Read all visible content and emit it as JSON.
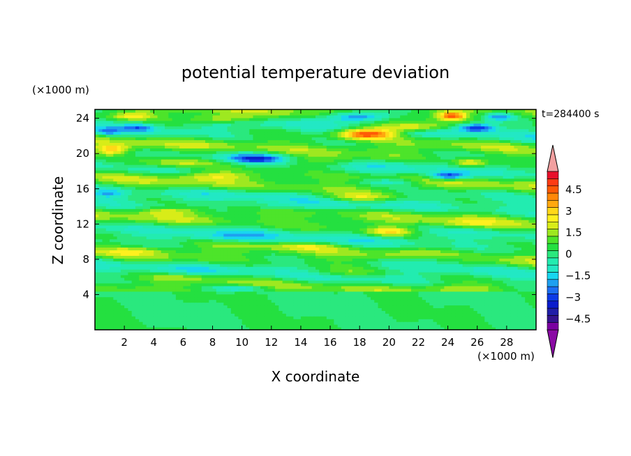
{
  "chart_data": {
    "type": "heatmap",
    "title": "potential temperature deviation",
    "xlabel": "X coordinate",
    "ylabel": "Z coordinate",
    "x_unit": "(×1000 m)",
    "y_unit": "(×1000 m)",
    "time_label": "t=284400 s",
    "xlim": [
      0,
      30
    ],
    "ylim": [
      0,
      25
    ],
    "x_ticks": [
      2,
      4,
      6,
      8,
      10,
      12,
      14,
      16,
      18,
      20,
      22,
      24,
      26,
      28
    ],
    "y_ticks": [
      4,
      8,
      12,
      16,
      20,
      24
    ],
    "colorbar": {
      "min": -5.25,
      "step": 0.5,
      "labels": [
        "4.5",
        "3",
        "1.5",
        "0",
        "−1.5",
        "−3",
        "−4.5"
      ],
      "label_values": [
        4.5,
        3,
        1.5,
        0,
        -1.5,
        -3,
        -4.5
      ],
      "colors": [
        "#7a00a0",
        "#34138e",
        "#201ea8",
        "#0b1ccc",
        "#0c3ae6",
        "#1c6ef2",
        "#1ea0f0",
        "#18d6f0",
        "#22e8c4",
        "#22ecb0",
        "#2ae87e",
        "#24e040",
        "#4de42a",
        "#9ee820",
        "#d8ec18",
        "#fff01e",
        "#ffd818",
        "#ffa80f",
        "#ff8808",
        "#ff5a06",
        "#ff3c14",
        "#e8102a"
      ],
      "under_color": "#8a0aa4",
      "over_color": "#f2a0a0"
    },
    "anomalies": [
      {
        "x": 17.8,
        "z": 24.2,
        "value": -4.0,
        "sx": 2.2,
        "sz": 0.55
      },
      {
        "x": 27.5,
        "z": 24.2,
        "value": -2.5,
        "sx": 1.0,
        "sz": 0.45
      },
      {
        "x": 18.5,
        "z": 22.3,
        "value": 4.8,
        "sx": 2.0,
        "sz": 0.6
      },
      {
        "x": 21.5,
        "z": 23.0,
        "value": 3.0,
        "sx": 2.4,
        "sz": 0.5
      },
      {
        "x": 24.3,
        "z": 24.3,
        "value": 4.0,
        "sx": 0.9,
        "sz": 0.45
      },
      {
        "x": 8.5,
        "z": 24.0,
        "value": 2.2,
        "sx": 2.5,
        "sz": 0.5
      },
      {
        "x": 2.5,
        "z": 24.3,
        "value": 2.0,
        "sx": 1.5,
        "sz": 0.4
      },
      {
        "x": 3.0,
        "z": 23.0,
        "value": -2.0,
        "sx": 1.2,
        "sz": 0.45
      },
      {
        "x": 0.8,
        "z": 22.5,
        "value": -1.8,
        "sx": 0.8,
        "sz": 0.4
      },
      {
        "x": 26.0,
        "z": 23.0,
        "value": -3.5,
        "sx": 1.3,
        "sz": 0.5
      },
      {
        "x": 11.0,
        "z": 19.5,
        "value": -2.5,
        "sx": 1.8,
        "sz": 0.5
      },
      {
        "x": 5.5,
        "z": 19.0,
        "value": 2.0,
        "sx": 3.0,
        "sz": 0.6
      },
      {
        "x": 1.2,
        "z": 20.5,
        "value": 2.8,
        "sx": 1.2,
        "sz": 0.6
      },
      {
        "x": 15.0,
        "z": 19.0,
        "value": 1.5,
        "sx": 3.0,
        "sz": 0.6
      },
      {
        "x": 24.0,
        "z": 17.5,
        "value": -3.5,
        "sx": 1.3,
        "sz": 0.45
      },
      {
        "x": 25.5,
        "z": 19.0,
        "value": 2.5,
        "sx": 1.2,
        "sz": 0.5
      },
      {
        "x": 20.0,
        "z": 16.8,
        "value": -1.5,
        "sx": 2.0,
        "sz": 0.4
      },
      {
        "x": 8.0,
        "z": 17.5,
        "value": 1.5,
        "sx": 2.5,
        "sz": 0.5
      },
      {
        "x": 1.0,
        "z": 15.5,
        "value": -1.5,
        "sx": 1.2,
        "sz": 0.5
      },
      {
        "x": 18.0,
        "z": 15.0,
        "value": 1.8,
        "sx": 2.5,
        "sz": 0.5
      },
      {
        "x": 12.0,
        "z": 14.0,
        "value": -1.2,
        "sx": 2.5,
        "sz": 0.5
      },
      {
        "x": 5.0,
        "z": 13.5,
        "value": 1.5,
        "sx": 2.0,
        "sz": 0.4
      },
      {
        "x": 20.0,
        "z": 11.2,
        "value": 2.5,
        "sx": 1.5,
        "sz": 0.5
      },
      {
        "x": 25.0,
        "z": 12.0,
        "value": 1.2,
        "sx": 2.0,
        "sz": 0.5
      },
      {
        "x": 9.0,
        "z": 10.5,
        "value": -1.2,
        "sx": 2.5,
        "sz": 0.5
      },
      {
        "x": 14.5,
        "z": 9.5,
        "value": 1.2,
        "sx": 2.5,
        "sz": 0.4
      },
      {
        "x": 3.0,
        "z": 9.0,
        "value": 1.0,
        "sx": 2.0,
        "sz": 0.4
      },
      {
        "x": 23.0,
        "z": 8.0,
        "value": -1.2,
        "sx": 2.5,
        "sz": 0.5
      },
      {
        "x": 17.0,
        "z": 6.5,
        "value": 1.0,
        "sx": 3.0,
        "sz": 0.5
      },
      {
        "x": 6.0,
        "z": 6.0,
        "value": 1.0,
        "sx": 2.5,
        "sz": 0.4
      },
      {
        "x": 10.0,
        "z": 4.8,
        "value": -1.8,
        "sx": 2.0,
        "sz": 0.35
      },
      {
        "x": 25.0,
        "z": 4.8,
        "value": 1.0,
        "sx": 2.5,
        "sz": 0.4
      }
    ]
  }
}
